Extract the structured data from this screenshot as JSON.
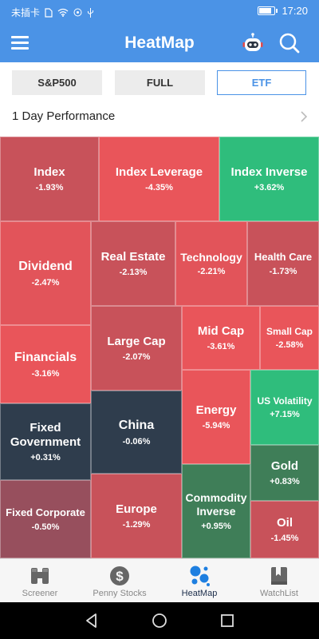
{
  "status_bar": {
    "carrier": "未插卡",
    "time": "17:20",
    "battery_level": 0.9
  },
  "app_bar": {
    "title": "HeatMap"
  },
  "segments": [
    {
      "label": "S&P500",
      "active": false
    },
    {
      "label": "FULL",
      "active": false
    },
    {
      "label": "ETF",
      "active": true
    }
  ],
  "performance": {
    "label": "1 Day Performance"
  },
  "colors": {
    "accent": "#4b93e6",
    "red_strong": "#e9555a",
    "red_mid": "#d25458",
    "red_dark": "#b9525a",
    "red_maroon": "#974f5d",
    "green_strong": "#2fbd7c",
    "green_mid": "#3ea968",
    "green_dark": "#3f7e58",
    "neutral_dark": "#2f3d4d"
  },
  "tiles": [
    {
      "id": "index",
      "name": "Index",
      "value": "-1.93%",
      "color": "#c8525a",
      "size": 15
    },
    {
      "id": "index-leverage",
      "name": "Index Leverage",
      "value": "-4.35%",
      "color": "#e9555a",
      "size": 15
    },
    {
      "id": "index-inverse",
      "name": "Index Inverse",
      "value": "+3.62%",
      "color": "#2fbd7c",
      "size": 15
    },
    {
      "id": "dividend",
      "name": "Dividend",
      "value": "-2.47%",
      "color": "#e2545a",
      "size": 16
    },
    {
      "id": "real-estate",
      "name": "Real Estate",
      "value": "-2.13%",
      "color": "#c8525a",
      "size": 15
    },
    {
      "id": "technology",
      "name": "Technology",
      "value": "-2.21%",
      "color": "#e2545a",
      "size": 14
    },
    {
      "id": "health-care",
      "name": "Health Care",
      "value": "-1.73%",
      "color": "#c8525a",
      "size": 13
    },
    {
      "id": "large-cap",
      "name": "Large Cap",
      "value": "-2.07%",
      "color": "#c8525a",
      "size": 15
    },
    {
      "id": "mid-cap",
      "name": "Mid Cap",
      "value": "-3.61%",
      "color": "#e9555a",
      "size": 15
    },
    {
      "id": "small-cap",
      "name": "Small Cap",
      "value": "-2.58%",
      "color": "#e9555a",
      "size": 12
    },
    {
      "id": "financials",
      "name": "Financials",
      "value": "-3.16%",
      "color": "#e9555a",
      "size": 16
    },
    {
      "id": "energy",
      "name": "Energy",
      "value": "-5.94%",
      "color": "#e9555a",
      "size": 15
    },
    {
      "id": "us-volatility",
      "name": "US Volatility",
      "value": "+7.15%",
      "color": "#2fbd7c",
      "size": 12
    },
    {
      "id": "fixed-government",
      "name": "Fixed Government",
      "value": "+0.31%",
      "color": "#2f3d4d",
      "size": 15
    },
    {
      "id": "china",
      "name": "China",
      "value": "-0.06%",
      "color": "#2f3d4d",
      "size": 16
    },
    {
      "id": "gold",
      "name": "Gold",
      "value": "+0.83%",
      "color": "#3f7e58",
      "size": 15
    },
    {
      "id": "fixed-corporate",
      "name": "Fixed Corporate",
      "value": "-0.50%",
      "color": "#974f5d",
      "size": 13
    },
    {
      "id": "europe",
      "name": "Europe",
      "value": "-1.29%",
      "color": "#c8525a",
      "size": 15
    },
    {
      "id": "commodity-inverse",
      "name": "Commodity Inverse",
      "value": "+0.95%",
      "color": "#3f7e58",
      "size": 14
    },
    {
      "id": "oil",
      "name": "Oil",
      "value": "-1.45%",
      "color": "#c8525a",
      "size": 15
    }
  ],
  "bottom_nav": [
    {
      "label": "Screener",
      "icon": "binoculars-icon",
      "active": false
    },
    {
      "label": "Penny Stocks",
      "icon": "dollar-coin-icon",
      "active": false
    },
    {
      "label": "HeatMap",
      "icon": "heatmap-bubbles-icon",
      "active": true
    },
    {
      "label": "WatchList",
      "icon": "bookmark-book-icon",
      "active": false
    }
  ]
}
